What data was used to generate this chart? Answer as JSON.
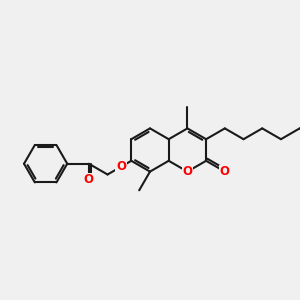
{
  "bg_color": "#f0f0f0",
  "bond_color": "#1a1a1a",
  "o_color": "#ff0000",
  "lw": 1.5,
  "figsize": [
    3.0,
    3.0
  ],
  "dpi": 100,
  "xlim": [
    0,
    10
  ],
  "ylim": [
    2,
    8
  ],
  "BL": 0.72
}
